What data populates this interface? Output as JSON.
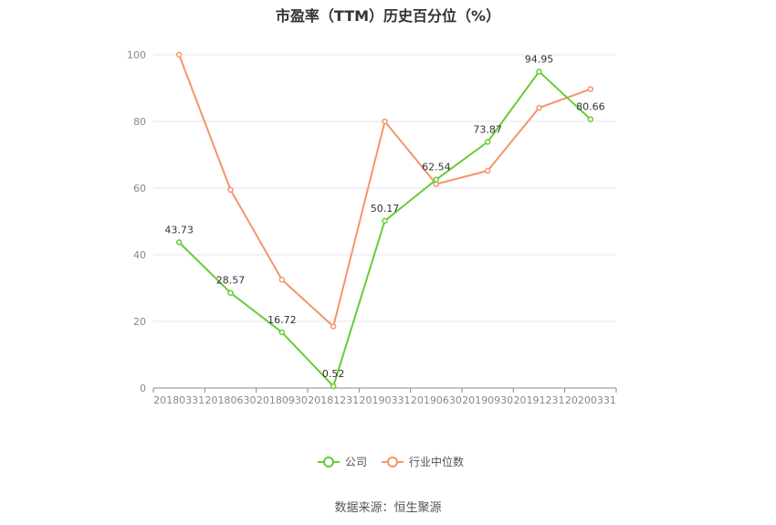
{
  "chart_data": {
    "type": "line",
    "title": "市盈率（TTM）历史百分位（%）",
    "categories": [
      "20180331",
      "20180630",
      "20180930",
      "20181231",
      "20190331",
      "20190630",
      "20190930",
      "20191231",
      "20200331"
    ],
    "ylim": [
      0,
      100
    ],
    "yticks": [
      0,
      20,
      40,
      60,
      80,
      100
    ],
    "grid": true,
    "legend_position": "bottom-center",
    "series": [
      {
        "name": "公司",
        "color": "#66cc33",
        "values": [
          43.73,
          28.57,
          16.72,
          0.52,
          50.17,
          62.54,
          73.87,
          94.95,
          80.66
        ],
        "labels": [
          "43.73",
          "28.57",
          "16.72",
          "0.52",
          "50.17",
          "62.54",
          "73.87",
          "94.95",
          "80.66"
        ]
      },
      {
        "name": "行业中位数",
        "color": "#f4956a",
        "values": [
          100,
          59.5,
          32.5,
          18.5,
          80,
          61.2,
          65.2,
          84.1,
          89.7
        ]
      }
    ]
  },
  "source_text": "数据来源：恒生聚源"
}
